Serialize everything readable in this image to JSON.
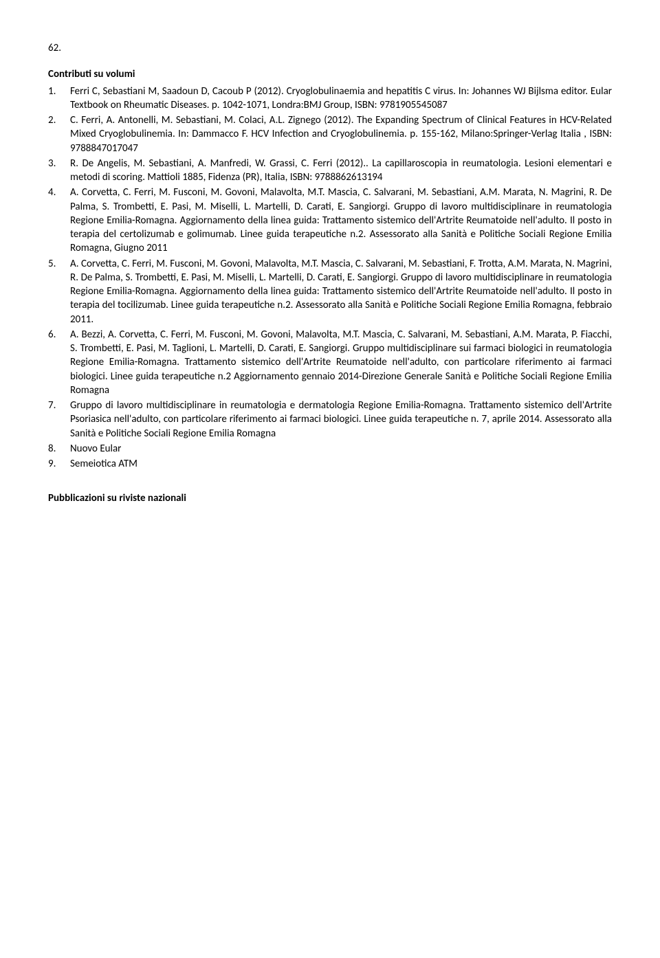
{
  "page_number": "62.",
  "heading": "Contributi su volumi",
  "items": [
    {
      "num": "1.",
      "text": "Ferri C, Sebastiani M, Saadoun D, Cacoub P (2012). Cryoglobulinaemia and hepatitis C virus. In: Johannes WJ Bijlsma editor. Eular Textbook on Rheumatic Diseases. p. 1042-1071, Londra:BMJ Group, ISBN: 9781905545087"
    },
    {
      "num": "2.",
      "text": "C. Ferri, A. Antonelli, M. Sebastiani, M. Colaci, A.L. Zignego (2012). The Expanding Spectrum of Clinical Features in HCV-Related Mixed Cryoglobulinemia. In: Dammacco F. HCV Infection and Cryoglobulinemia. p. 155-162, Milano:Springer-Verlag Italia , ISBN: 9788847017047"
    },
    {
      "num": "3.",
      "text": "R. De Angelis, M. Sebastiani, A. Manfredi, W. Grassi, C. Ferri (2012).. La capillaroscopia in reumatologia. Lesioni elementari e metodi di scoring. Mattioli 1885, Fidenza (PR), Italia, ISBN: 9788862613194"
    },
    {
      "num": "4.",
      "text": "A. Corvetta, C. Ferri, M. Fusconi, M. Govoni, Malavolta, M.T. Mascia, C. Salvarani, M. Sebastiani, A.M. Marata, N. Magrini, R. De  Palma, S. Trombetti, E. Pasi, M. Miselli, L. Martelli, D. Carati, E. Sangiorgi. Gruppo di lavoro multidisciplinare in reumatologia Regione Emilia-Romagna. Aggiornamento della  linea guida: Trattamento sistemico dell'Artrite Reumatoide nell'adulto. Il posto in terapia del certolizumab e golimumab. Linee guida terapeutiche n.2. Assessorato alla Sanità e Politiche Sociali Regione Emilia Romagna, Giugno 2011"
    },
    {
      "num": "5.",
      "text": "A. Corvetta, C. Ferri, M. Fusconi, M. Govoni, Malavolta, M.T. Mascia, C. Salvarani, M. Sebastiani, F. Trotta, A.M. Marata, N. Magrini, R. De  Palma, S. Trombetti, E. Pasi, M. Miselli, L. Martelli, D. Carati, E. Sangiorgi. Gruppo di lavoro multidisciplinare in reumatologia Regione Emilia-Romagna. Aggiornamento della  linea guida: Trattamento sistemico dell'Artrite Reumatoide nell'adulto. Il posto in terapia del tocilizumab. Linee guida terapeutiche n.2. Assessorato alla Sanità e Politiche Sociali Regione Emilia Romagna, febbraio 2011."
    },
    {
      "num": "6.",
      "text": "A. Bezzi, A. Corvetta, C. Ferri, M. Fusconi, M. Govoni, Malavolta, M.T. Mascia, C. Salvarani, M. Sebastiani, A.M. Marata, P. Fiacchi, S. Trombetti, E. Pasi, M. Taglioni, L. Martelli, D. Carati, E. Sangiorgi. Gruppo multidisciplinare sui farmaci biologici in reumatologia Regione Emilia-Romagna. Trattamento sistemico dell'Artrite Reumatoide nell'adulto, con  particolare riferimento ai farmaci biologici. Linee guida terapeutiche n.2 Aggiornamento gennaio 2014-Direzione Generale Sanità e Politiche Sociali Regione Emilia Romagna"
    },
    {
      "num": "7.",
      "text": "Gruppo di lavoro multidisciplinare in reumatologia e dermatologia Regione Emilia-Romagna. Trattamento sistemico dell'Artrite Psoriasica nell'adulto, con particolare riferimento ai farmaci biologici. Linee guida terapeutiche n. 7, aprile 2014. Assessorato alla Sanità e Politiche Sociali Regione Emilia Romagna"
    },
    {
      "num": "8.",
      "text": "Nuovo Eular"
    },
    {
      "num": "9.",
      "text": "Semeiotica ATM"
    }
  ],
  "bottom_heading": "Pubblicazioni su riviste nazionali"
}
